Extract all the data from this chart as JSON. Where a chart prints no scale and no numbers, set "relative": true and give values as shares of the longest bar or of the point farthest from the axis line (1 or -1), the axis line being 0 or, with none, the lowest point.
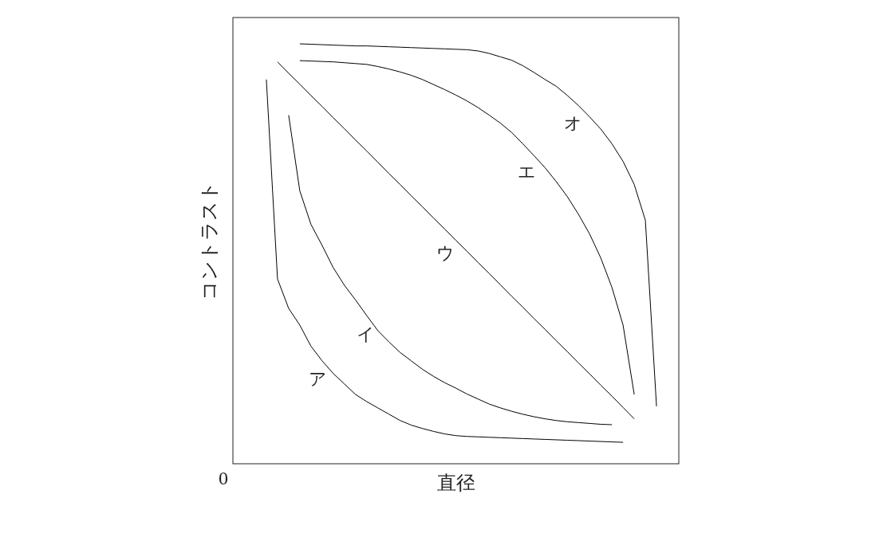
{
  "chart_data": {
    "type": "line",
    "relative": true,
    "xlabel": "直径",
    "ylabel": "コントラスト",
    "annotations": [
      "0"
    ],
    "marker": "none",
    "line_style": "solid",
    "categories": [
      null,
      null,
      null,
      null,
      null,
      null,
      null,
      null,
      null,
      null,
      null,
      null,
      null,
      null,
      null,
      null,
      null,
      null,
      null,
      null,
      null,
      null,
      null,
      null,
      null,
      null,
      null,
      null,
      null,
      null,
      null,
      null,
      null,
      null,
      null,
      null,
      null,
      null,
      null,
      null,
      null
    ],
    "series": [
      {
        "name": "ア",
        "color": "#000000",
        "values": [
          null,
          null,
          null,
          0.915,
          0.44,
          0.37,
          0.33,
          0.28,
          0.245,
          0.215,
          0.19,
          0.165,
          0.148,
          0.133,
          0.118,
          0.103,
          0.092,
          0.084,
          0.077,
          0.071,
          0.067,
          0.065,
          0.064,
          0.063,
          0.062,
          0.061,
          0.06,
          0.059,
          0.058,
          0.057,
          0.056,
          0.055,
          0.054,
          0.053,
          0.052,
          0.051,
          null,
          null,
          null,
          null,
          null
        ]
      },
      {
        "name": "イ",
        "color": "#000000",
        "values": [
          null,
          null,
          null,
          null,
          null,
          0.83,
          0.65,
          0.57,
          0.52,
          0.467,
          0.425,
          0.39,
          0.353,
          0.317,
          0.29,
          0.265,
          0.245,
          0.225,
          0.208,
          0.193,
          0.18,
          0.166,
          0.154,
          0.142,
          0.133,
          0.125,
          0.118,
          0.112,
          0.107,
          0.103,
          0.1,
          0.098,
          0.096,
          0.094,
          0.093,
          null,
          null,
          null,
          null,
          null,
          null
        ]
      },
      {
        "name": "ウ",
        "color": "#000000",
        "values": [
          null,
          null,
          null,
          null,
          0.957,
          0.93,
          0.904,
          0.877,
          0.851,
          0.824,
          0.798,
          0.771,
          0.745,
          0.718,
          0.691,
          0.665,
          0.638,
          0.612,
          0.585,
          0.559,
          0.532,
          0.506,
          0.479,
          0.453,
          0.426,
          0.399,
          0.373,
          0.346,
          0.32,
          0.293,
          0.267,
          0.24,
          0.214,
          0.187,
          0.161,
          0.134,
          0.107,
          null,
          null,
          null,
          null
        ]
      },
      {
        "name": "エ",
        "color": "#000000",
        "values": [
          null,
          null,
          null,
          null,
          null,
          null,
          0.96,
          0.959,
          0.958,
          0.957,
          0.955,
          0.953,
          0.951,
          0.946,
          0.94,
          0.933,
          0.925,
          0.915,
          0.903,
          0.891,
          0.878,
          0.864,
          0.848,
          0.83,
          0.811,
          0.789,
          0.762,
          0.734,
          0.705,
          0.672,
          0.636,
          0.594,
          0.547,
          0.49,
          0.42,
          0.33,
          0.165,
          null,
          null,
          null,
          null
        ]
      },
      {
        "name": "オ",
        "color": "#000000",
        "values": [
          null,
          null,
          null,
          null,
          null,
          null,
          1,
          0.999,
          0.998,
          0.997,
          0.996,
          0.995,
          0.995,
          0.994,
          0.993,
          0.992,
          0.991,
          0.99,
          0.989,
          0.988,
          0.987,
          0.986,
          0.983,
          0.977,
          0.969,
          0.961,
          0.948,
          0.932,
          0.915,
          0.899,
          0.877,
          0.853,
          0.826,
          0.797,
          0.762,
          0.72,
          0.665,
          0.58,
          0.137,
          null,
          null
        ]
      }
    ]
  }
}
